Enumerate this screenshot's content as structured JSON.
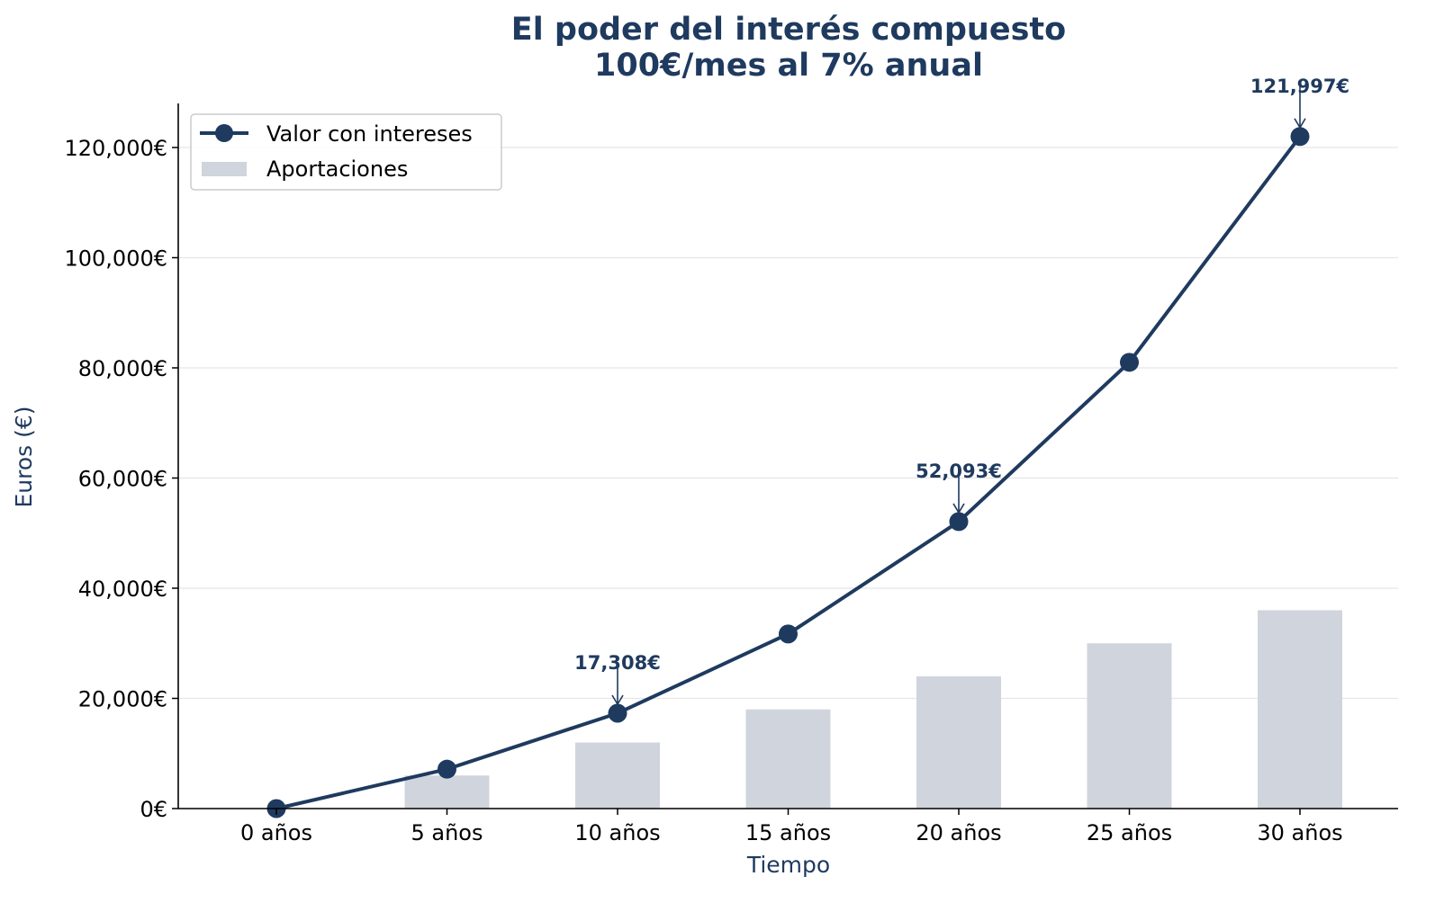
{
  "chart_data": {
    "type": "line",
    "title_line1": "El poder del interés compuesto",
    "title_line2": "100€/mes al 7% anual",
    "xlabel": "Tiempo",
    "ylabel": "Euros (€)",
    "categories": [
      "0 años",
      "5 años",
      "10 años",
      "15 años",
      "20 años",
      "25 años",
      "30 años"
    ],
    "ylim": [
      0,
      128000
    ],
    "yticks": [
      0,
      20000,
      40000,
      60000,
      80000,
      100000,
      120000
    ],
    "ytick_labels": [
      "0€",
      "20,000€",
      "40,000€",
      "60,000€",
      "80,000€",
      "100,000€",
      "120,000€"
    ],
    "grid": "horizontal",
    "legend_placement": "top-left",
    "series": [
      {
        "name": "Valor con intereses",
        "kind": "line-markers",
        "color": "#1f3a5f",
        "values": [
          0,
          7159,
          17308,
          31696,
          52093,
          81007,
          121997
        ]
      },
      {
        "name": "Aportaciones",
        "kind": "bar",
        "color": "#d0d4dc",
        "values": [
          0,
          6000,
          12000,
          18000,
          24000,
          30000,
          36000
        ]
      }
    ],
    "annotations": [
      {
        "category": "10 años",
        "value": 17308,
        "text": "17,308€"
      },
      {
        "category": "20 años",
        "value": 52093,
        "text": "52,093€"
      },
      {
        "category": "30 años",
        "value": 121997,
        "text": "121,997€"
      }
    ]
  }
}
